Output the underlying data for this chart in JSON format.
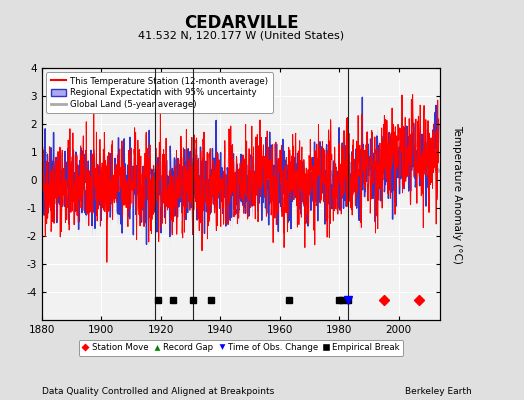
{
  "title": "CEDARVILLE",
  "subtitle": "41.532 N, 120.177 W (United States)",
  "xlabel_bottom": "Data Quality Controlled and Aligned at Breakpoints",
  "xlabel_right": "Berkeley Earth",
  "ylabel": "Temperature Anomaly (°C)",
  "xlim": [
    1880,
    2014
  ],
  "ylim": [
    -5,
    4
  ],
  "yticks": [
    -4,
    -3,
    -2,
    -1,
    0,
    1,
    2,
    3,
    4
  ],
  "xticks": [
    1880,
    1900,
    1920,
    1940,
    1960,
    1980,
    2000
  ],
  "bg_color": "#e0e0e0",
  "plot_bg_color": "#f2f2f2",
  "grid_color": "#ffffff",
  "station_color": "#ff0000",
  "regional_color": "#3333cc",
  "regional_fill_color": "#aaaaee",
  "global_color": "#aaaaaa",
  "vertical_lines": [
    1918,
    1931,
    1983
  ],
  "empirical_breaks": [
    1919,
    1924,
    1931,
    1937,
    1963,
    1980,
    1981,
    1983
  ],
  "station_moves": [
    1995,
    2007
  ],
  "obs_changes": [
    1983
  ],
  "seed": 42
}
